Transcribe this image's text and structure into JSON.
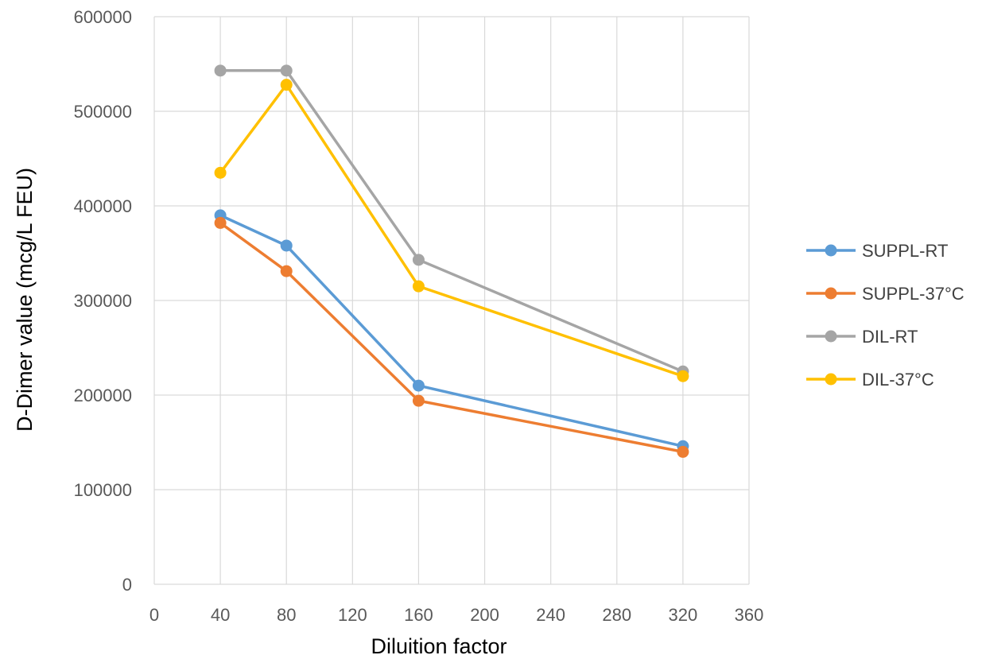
{
  "chart_data": {
    "type": "line",
    "title": "",
    "xlabel": "Diluition factor",
    "ylabel": "D-Dimer value (mcg/L FEU)",
    "xlim": [
      0,
      360
    ],
    "ylim": [
      0,
      600000
    ],
    "xticks": [
      0,
      40,
      80,
      120,
      160,
      200,
      240,
      280,
      320,
      360
    ],
    "yticks": [
      0,
      100000,
      200000,
      300000,
      400000,
      500000,
      600000
    ],
    "grid": true,
    "legend_position": "right",
    "x": [
      40,
      80,
      160,
      320
    ],
    "series": [
      {
        "name": "SUPPL-RT",
        "color": "#5B9BD5",
        "values": [
          390000,
          358000,
          210000,
          146000
        ]
      },
      {
        "name": "SUPPL-37°C",
        "color": "#ED7D31",
        "values": [
          382000,
          331000,
          194000,
          140000
        ]
      },
      {
        "name": "DIL-RT",
        "color": "#A5A5A5",
        "values": [
          543000,
          543000,
          343000,
          225000
        ]
      },
      {
        "name": "DIL-37°C",
        "color": "#FFC000",
        "values": [
          435000,
          528000,
          315000,
          220000
        ]
      }
    ]
  }
}
